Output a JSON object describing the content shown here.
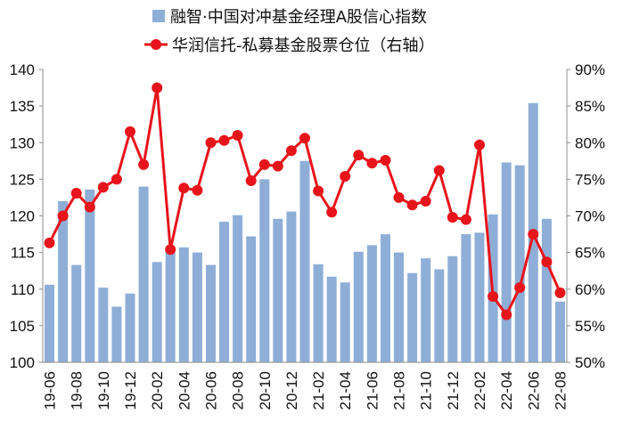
{
  "chart_data": {
    "type": "bar+line",
    "legend": [
      {
        "label": "融智·中国对冲基金经理A股信心指数",
        "color": "#8eaed7",
        "marker": "bar"
      },
      {
        "label": "华润信托-私募基金股票仓位（右轴）",
        "color": "#e8141b",
        "marker": "line-dot"
      }
    ],
    "categories": [
      "19-06",
      "19-07",
      "19-08",
      "19-09",
      "19-10",
      "19-11",
      "19-12",
      "20-01",
      "20-02",
      "20-03",
      "20-04",
      "20-05",
      "20-06",
      "20-07",
      "20-08",
      "20-09",
      "20-10",
      "20-11",
      "20-12",
      "21-01",
      "21-02",
      "21-03",
      "21-04",
      "21-05",
      "21-06",
      "21-07",
      "21-08",
      "21-09",
      "21-10",
      "21-11",
      "21-12",
      "22-01",
      "22-02",
      "22-03",
      "22-04",
      "22-05",
      "22-06",
      "22-07",
      "22-08"
    ],
    "x_tick_labels": [
      "19-06",
      "19-08",
      "19-10",
      "19-12",
      "20-02",
      "20-04",
      "20-06",
      "20-08",
      "20-10",
      "20-12",
      "21-02",
      "21-04",
      "21-06",
      "21-08",
      "21-10",
      "21-12",
      "22-02",
      "22-04",
      "22-06",
      "22-08"
    ],
    "series": [
      {
        "name": "融智·中国对冲基金经理A股信心指数",
        "type": "bar",
        "axis": "left",
        "color": "#8eaed7",
        "values": [
          110.6,
          122.0,
          113.3,
          123.6,
          110.2,
          107.6,
          109.4,
          124.0,
          113.7,
          115.2,
          115.7,
          115.0,
          113.3,
          119.2,
          120.1,
          117.2,
          125.0,
          119.6,
          120.6,
          127.5,
          113.4,
          111.7,
          110.9,
          115.1,
          116.0,
          117.5,
          115.0,
          112.2,
          114.2,
          112.7,
          114.5,
          117.5,
          117.7,
          120.2,
          127.3,
          126.9,
          135.4,
          119.6,
          108.3
        ]
      },
      {
        "name": "华润信托-私募基金股票仓位（右轴）",
        "type": "line",
        "axis": "right",
        "color": "#e8141b",
        "values": [
          66.3,
          70.0,
          73.1,
          71.2,
          73.9,
          75.0,
          81.5,
          77.0,
          87.5,
          65.4,
          73.8,
          73.5,
          80.0,
          80.3,
          81.0,
          74.8,
          77.0,
          76.8,
          78.9,
          80.6,
          73.4,
          70.5,
          75.4,
          78.3,
          77.2,
          77.6,
          72.5,
          71.5,
          72.0,
          76.2,
          69.8,
          69.5,
          79.7,
          59.0,
          56.5,
          60.2,
          67.5,
          63.7,
          59.5
        ]
      }
    ],
    "y_left": {
      "min": 100,
      "max": 140,
      "step": 5,
      "ticks": [
        "100",
        "105",
        "110",
        "115",
        "120",
        "125",
        "130",
        "135",
        "140"
      ]
    },
    "y_right": {
      "min": 50,
      "max": 90,
      "step": 5,
      "ticks": [
        "50%",
        "55%",
        "60%",
        "65%",
        "70%",
        "75%",
        "80%",
        "85%",
        "90%"
      ]
    },
    "grid": false,
    "legend_position": "top-center"
  }
}
